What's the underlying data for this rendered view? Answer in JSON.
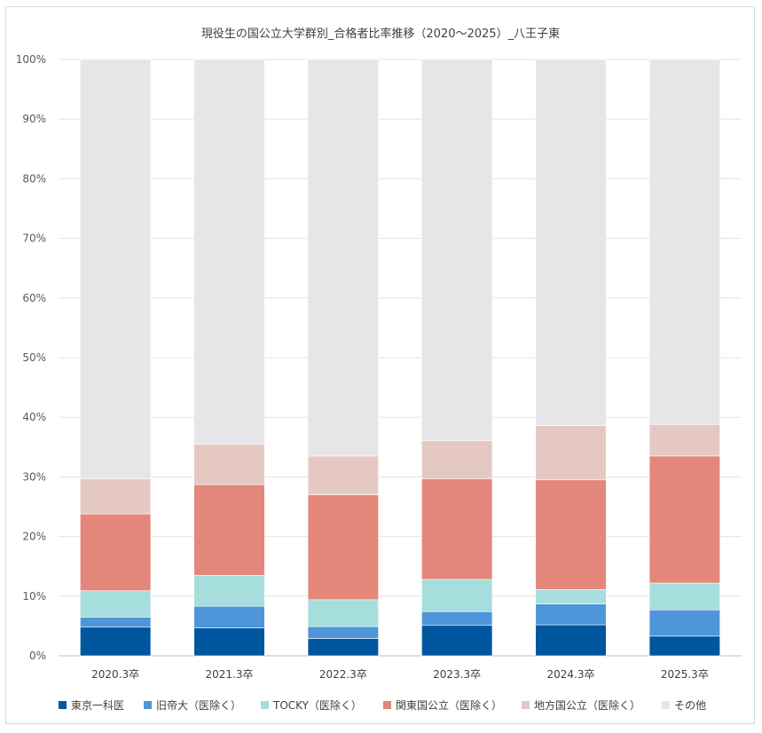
{
  "chart_data": {
    "type": "bar",
    "stacked": true,
    "percent": true,
    "title": "現役生の国公立大学群別_合格者比率推移（2020～2025）_八王子東",
    "categories": [
      "2020.3卒",
      "2021.3卒",
      "2022.3卒",
      "2023.3卒",
      "2024.3卒",
      "2025.3卒"
    ],
    "ylim": [
      0,
      100
    ],
    "yticks": [
      "0%",
      "10%",
      "20%",
      "30%",
      "40%",
      "50%",
      "60%",
      "70%",
      "80%",
      "90%",
      "100%"
    ],
    "grid": true,
    "legend_position": "bottom",
    "series": [
      {
        "name": "東京一科医",
        "color": "#00569f",
        "values": [
          4.8,
          4.7,
          2.9,
          5.1,
          5.2,
          3.3
        ]
      },
      {
        "name": "旧帝大（医除く）",
        "color": "#4e96d9",
        "values": [
          1.7,
          3.6,
          2.0,
          2.3,
          3.5,
          4.4
        ]
      },
      {
        "name": "TOCKY（医除く）",
        "color": "#a6dedd",
        "values": [
          4.4,
          5.2,
          4.5,
          5.4,
          2.4,
          4.5
        ]
      },
      {
        "name": "関東国公立（医除く）",
        "color": "#e3877b",
        "values": [
          12.9,
          15.2,
          17.6,
          16.9,
          18.4,
          21.3
        ]
      },
      {
        "name": "地方国公立（医除く）",
        "color": "#e6c8c3",
        "values": [
          5.9,
          6.8,
          6.5,
          6.4,
          9.1,
          5.3
        ]
      },
      {
        "name": "その他",
        "color": "#e6e6e9",
        "values": [
          70.3,
          64.5,
          66.5,
          63.9,
          61.4,
          61.2
        ]
      }
    ]
  }
}
